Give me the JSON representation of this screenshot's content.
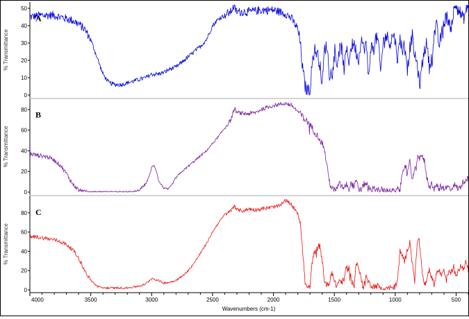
{
  "chart_data": {
    "type": "line",
    "title": "",
    "xlabel": "Wavenumbers (cm-1)",
    "xlim": [
      4000,
      400
    ],
    "x_ticks": [
      4000,
      3500,
      3000,
      2500,
      2000,
      1500,
      1000,
      500
    ],
    "panels": [
      {
        "label": "A",
        "ylabel": "% Transmittance",
        "ylim": [
          0,
          52
        ],
        "y_ticks": [
          0,
          10,
          20,
          30,
          40,
          50
        ],
        "color": "#0000dd",
        "x": [
          4000,
          3900,
          3800,
          3750,
          3700,
          3650,
          3600,
          3550,
          3500,
          3450,
          3400,
          3350,
          3300,
          3250,
          3200,
          3150,
          3100,
          3050,
          3000,
          2950,
          2900,
          2850,
          2800,
          2750,
          2700,
          2650,
          2600,
          2550,
          2500,
          2450,
          2400,
          2350,
          2330,
          2300,
          2250,
          2200,
          2100,
          2000,
          1950,
          1900,
          1850,
          1800,
          1780,
          1760,
          1740,
          1720,
          1700,
          1680,
          1660,
          1640,
          1620,
          1600,
          1580,
          1560,
          1540,
          1520,
          1500,
          1480,
          1460,
          1440,
          1420,
          1400,
          1380,
          1360,
          1340,
          1320,
          1300,
          1280,
          1260,
          1240,
          1220,
          1200,
          1180,
          1160,
          1140,
          1120,
          1100,
          1080,
          1060,
          1040,
          1020,
          1000,
          980,
          960,
          940,
          920,
          900,
          880,
          860,
          840,
          820,
          800,
          780,
          760,
          740,
          720,
          700,
          680,
          660,
          640,
          620,
          600,
          580,
          560,
          540,
          520,
          500,
          480,
          460,
          440,
          420,
          400
        ],
        "y": [
          45,
          46,
          46,
          45,
          44,
          43,
          41,
          38,
          32,
          22,
          12,
          7,
          6,
          6,
          7,
          8,
          9,
          10,
          12,
          12,
          13,
          15,
          16,
          19,
          22,
          25,
          28,
          32,
          40,
          44,
          46,
          48,
          51,
          48,
          48,
          48,
          49,
          49,
          48,
          47,
          44,
          38,
          30,
          15,
          5,
          2,
          3,
          20,
          26,
          24,
          18,
          6,
          27,
          28,
          12,
          14,
          29,
          17,
          26,
          27,
          15,
          26,
          20,
          28,
          30,
          25,
          20,
          34,
          26,
          30,
          10,
          28,
          26,
          33,
          31,
          13,
          30,
          34,
          33,
          30,
          35,
          32,
          20,
          33,
          26,
          30,
          15,
          27,
          34,
          22,
          18,
          5,
          17,
          26,
          30,
          16,
          22,
          35,
          40,
          28,
          35,
          42,
          45,
          43,
          40,
          48,
          52,
          50,
          46,
          44,
          48,
          53
        ],
        "noise_scale": 2.5
      },
      {
        "label": "B",
        "ylabel": "% Transmittance",
        "ylim": [
          0,
          88
        ],
        "y_ticks": [
          0,
          20,
          40,
          60,
          80
        ],
        "color": "#7a1fa0",
        "x": [
          4000,
          3950,
          3900,
          3850,
          3800,
          3750,
          3700,
          3650,
          3600,
          3550,
          3500,
          3450,
          3400,
          3350,
          3300,
          3250,
          3200,
          3150,
          3100,
          3050,
          3020,
          3000,
          2980,
          2960,
          2940,
          2920,
          2900,
          2880,
          2860,
          2840,
          2820,
          2800,
          2750,
          2700,
          2650,
          2600,
          2550,
          2500,
          2450,
          2400,
          2350,
          2320,
          2300,
          2250,
          2200,
          2150,
          2100,
          2050,
          2000,
          1950,
          1900,
          1850,
          1800,
          1750,
          1700,
          1680,
          1660,
          1640,
          1620,
          1600,
          1580,
          1560,
          1540,
          1520,
          1500,
          1480,
          1460,
          1440,
          1420,
          1400,
          1380,
          1360,
          1340,
          1320,
          1300,
          1280,
          1260,
          1240,
          1220,
          1200,
          1150,
          1100,
          1050,
          1000,
          980,
          960,
          940,
          920,
          900,
          880,
          860,
          840,
          820,
          800,
          780,
          760,
          740,
          720,
          700,
          680,
          660,
          640,
          620,
          600,
          580,
          560,
          540,
          520,
          500,
          480,
          460,
          440,
          420,
          400
        ],
        "y": [
          37,
          36,
          35,
          34,
          31,
          26,
          18,
          8,
          2,
          0,
          0,
          0,
          0,
          0,
          0,
          0,
          0,
          0,
          2,
          8,
          15,
          24,
          26,
          20,
          10,
          7,
          4,
          3,
          3,
          6,
          10,
          14,
          20,
          25,
          30,
          35,
          40,
          47,
          54,
          62,
          70,
          81,
          77,
          76,
          76,
          77,
          80,
          82,
          84,
          85,
          86,
          84,
          78,
          72,
          65,
          62,
          58,
          55,
          52,
          48,
          40,
          25,
          10,
          3,
          2,
          3,
          8,
          6,
          3,
          8,
          4,
          9,
          5,
          10,
          4,
          2,
          7,
          9,
          5,
          4,
          2,
          2,
          1,
          1,
          3,
          2,
          20,
          28,
          18,
          30,
          12,
          20,
          32,
          38,
          34,
          30,
          14,
          5,
          8,
          4,
          7,
          3,
          6,
          4,
          4,
          5,
          2,
          8,
          5,
          3,
          6,
          10,
          13,
          12
        ],
        "noise_scale": 2.0
      },
      {
        "label": "C",
        "ylabel": "% Transmittance",
        "ylim": [
          0,
          95
        ],
        "y_ticks": [
          0,
          20,
          40,
          60,
          80
        ],
        "color": "#ee1111",
        "x": [
          4000,
          3950,
          3900,
          3850,
          3800,
          3750,
          3700,
          3650,
          3600,
          3550,
          3500,
          3450,
          3400,
          3350,
          3300,
          3250,
          3200,
          3150,
          3100,
          3050,
          3000,
          2950,
          2900,
          2850,
          2800,
          2750,
          2700,
          2650,
          2600,
          2550,
          2500,
          2450,
          2400,
          2350,
          2320,
          2300,
          2250,
          2200,
          2150,
          2100,
          2050,
          2000,
          1950,
          1900,
          1850,
          1800,
          1780,
          1760,
          1740,
          1720,
          1700,
          1680,
          1660,
          1640,
          1620,
          1600,
          1580,
          1560,
          1540,
          1520,
          1500,
          1480,
          1460,
          1440,
          1420,
          1400,
          1380,
          1360,
          1340,
          1320,
          1300,
          1280,
          1260,
          1240,
          1220,
          1200,
          1180,
          1160,
          1140,
          1120,
          1100,
          1080,
          1060,
          1040,
          1020,
          1000,
          980,
          960,
          940,
          920,
          900,
          880,
          860,
          840,
          820,
          800,
          780,
          760,
          740,
          720,
          700,
          680,
          660,
          640,
          620,
          600,
          580,
          560,
          540,
          520,
          500,
          480,
          460,
          440,
          420,
          400
        ],
        "y": [
          55,
          55,
          54,
          53,
          52,
          50,
          47,
          42,
          33,
          20,
          10,
          4,
          2,
          2,
          2,
          2,
          2,
          3,
          4,
          6,
          12,
          10,
          7,
          8,
          10,
          14,
          20,
          28,
          38,
          48,
          60,
          70,
          78,
          82,
          88,
          83,
          82,
          84,
          83,
          84,
          85,
          86,
          87,
          93,
          88,
          80,
          70,
          40,
          8,
          1,
          4,
          30,
          40,
          46,
          45,
          32,
          8,
          5,
          8,
          20,
          8,
          4,
          10,
          8,
          10,
          25,
          22,
          10,
          6,
          28,
          24,
          10,
          4,
          14,
          8,
          5,
          4,
          4,
          4,
          3,
          2,
          2,
          2,
          2,
          2,
          3,
          12,
          40,
          35,
          30,
          42,
          50,
          30,
          8,
          50,
          52,
          18,
          5,
          9,
          22,
          12,
          6,
          18,
          20,
          15,
          22,
          10,
          20,
          18,
          24,
          16,
          20,
          25,
          22,
          30,
          24
        ],
        "noise_scale": 2.0
      }
    ]
  }
}
